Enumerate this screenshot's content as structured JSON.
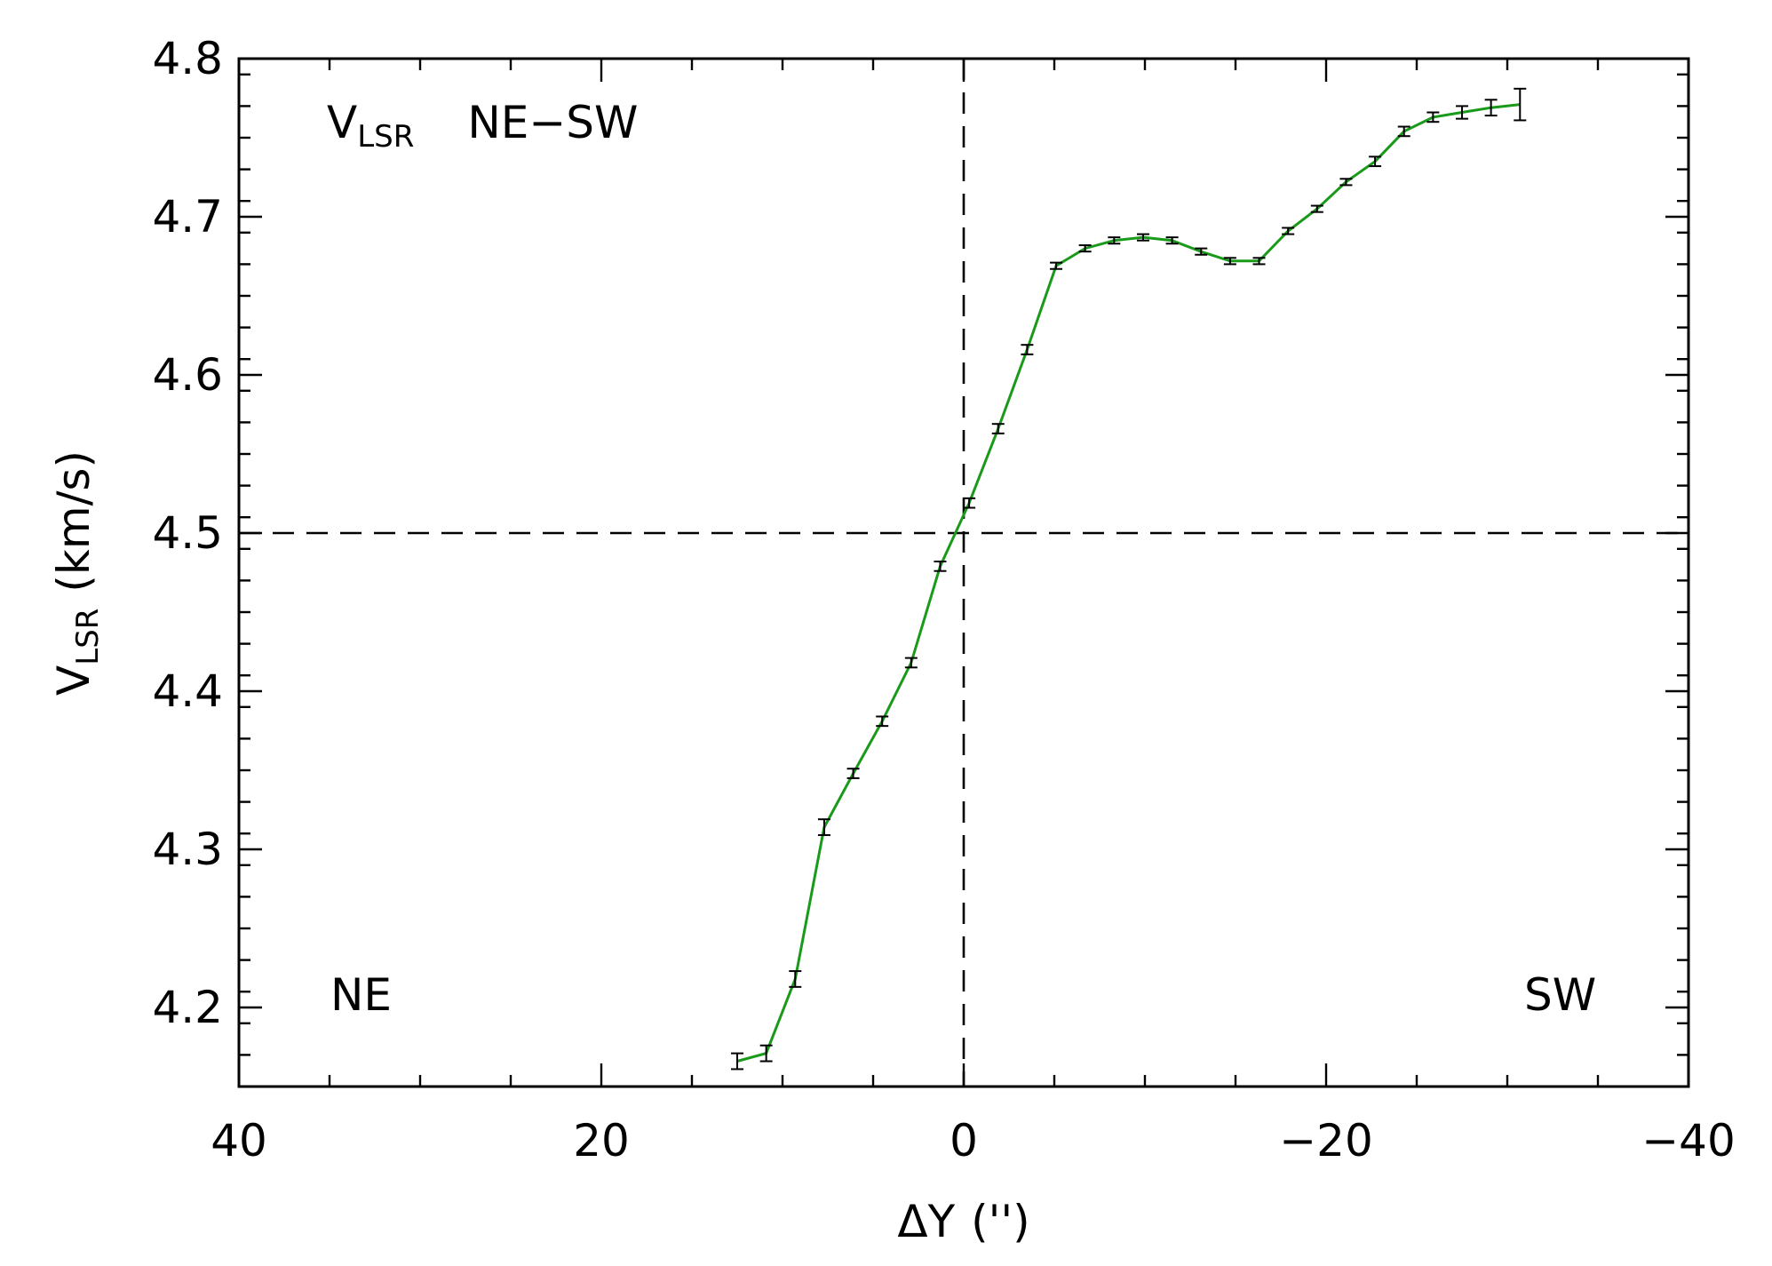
{
  "chart_data": {
    "type": "line",
    "x_label_main": "ΔY",
    "x_label_unit": "('')",
    "y_label_main": "V",
    "y_label_sub": "LSR",
    "y_label_unit": "(km/s)",
    "xlim": [
      40,
      -40
    ],
    "ylim": [
      4.15,
      4.8
    ],
    "x_ticks": [
      40,
      20,
      0,
      -20,
      -40
    ],
    "x_tick_labels": [
      "40",
      "20",
      "0",
      "−20",
      "−40"
    ],
    "y_ticks": [
      4.2,
      4.3,
      4.4,
      4.5,
      4.6,
      4.7,
      4.8
    ],
    "y_tick_labels": [
      "4.2",
      "4.3",
      "4.4",
      "4.5",
      "4.6",
      "4.7",
      "4.8"
    ],
    "x_minor_step": 5,
    "y_minor_step": 0.02,
    "reference_lines": {
      "x": 0,
      "y": 4.5
    },
    "line_color": "#1a9a1a",
    "annotations": {
      "title_main": "V",
      "title_sub": "LSR",
      "title_rest": "NE−SW",
      "left": "NE",
      "right": "SW"
    },
    "series": [
      {
        "x": [
          12.5,
          10.9,
          9.3,
          7.7,
          6.1,
          4.5,
          2.9,
          1.3,
          -0.3,
          -1.9,
          -3.5,
          -5.1,
          -6.7,
          -8.3,
          -9.9,
          -11.5,
          -13.1,
          -14.7,
          -16.3,
          -17.9,
          -19.5,
          -21.1,
          -22.7,
          -24.3,
          -25.9,
          -27.5,
          -29.1,
          -30.7
        ],
        "y": [
          4.166,
          4.171,
          4.218,
          4.314,
          4.348,
          4.381,
          4.418,
          4.479,
          4.519,
          4.566,
          4.616,
          4.669,
          4.68,
          4.685,
          4.687,
          4.685,
          4.678,
          4.672,
          4.672,
          4.691,
          4.705,
          4.722,
          4.735,
          4.754,
          4.763,
          4.766,
          4.769,
          4.771
        ],
        "err": [
          0.005,
          0.005,
          0.005,
          0.005,
          0.003,
          0.003,
          0.003,
          0.003,
          0.003,
          0.003,
          0.003,
          0.002,
          0.002,
          0.002,
          0.002,
          0.002,
          0.002,
          0.002,
          0.002,
          0.002,
          0.002,
          0.002,
          0.003,
          0.003,
          0.003,
          0.004,
          0.005,
          0.01
        ]
      }
    ]
  }
}
